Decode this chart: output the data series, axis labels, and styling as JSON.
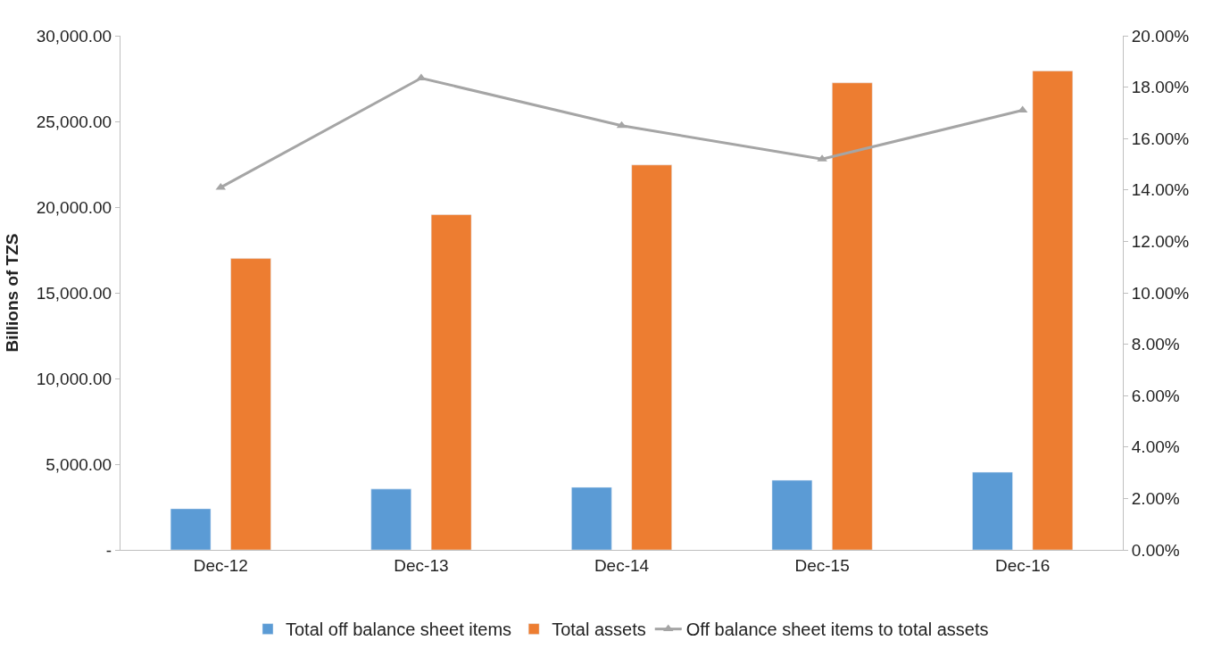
{
  "chart_data": {
    "type": "bar",
    "ylabel": "Billions of TZS",
    "categories": [
      "Dec-12",
      "Dec-13",
      "Dec-14",
      "Dec-15",
      "Dec-16"
    ],
    "series": [
      {
        "name": "Total off balance sheet items",
        "color": "#5b9bd5",
        "values": [
          2400,
          3550,
          3650,
          4060,
          4530
        ]
      },
      {
        "name": "Total assets",
        "color": "#ed7d31",
        "values": [
          17000,
          19560,
          22460,
          27250,
          27940
        ]
      },
      {
        "name": "Off balance sheet items to total assets",
        "type": "line",
        "axis": "y2",
        "color": "#a5a5a5",
        "marker": "triangle",
        "values": [
          14.1,
          18.35,
          16.5,
          15.2,
          17.1
        ]
      }
    ],
    "ylim": [
      0,
      30000
    ],
    "yticks": [
      {
        "value": 0,
        "label": "-"
      },
      {
        "value": 5000,
        "label": "5,000.00"
      },
      {
        "value": 10000,
        "label": "10,000.00"
      },
      {
        "value": 15000,
        "label": "15,000.00"
      },
      {
        "value": 20000,
        "label": "20,000.00"
      },
      {
        "value": 25000,
        "label": "25,000.00"
      },
      {
        "value": 30000,
        "label": "30,000.00"
      }
    ],
    "y2lim": [
      0,
      20
    ],
    "y2ticks": [
      {
        "value": 0,
        "label": "0.00%"
      },
      {
        "value": 2,
        "label": "2.00%"
      },
      {
        "value": 4,
        "label": "4.00%"
      },
      {
        "value": 6,
        "label": "6.00%"
      },
      {
        "value": 8,
        "label": "8.00%"
      },
      {
        "value": 10,
        "label": "10.00%"
      },
      {
        "value": 12,
        "label": "12.00%"
      },
      {
        "value": 14,
        "label": "14.00%"
      },
      {
        "value": 16,
        "label": "16.00%"
      },
      {
        "value": 18,
        "label": "18.00%"
      },
      {
        "value": 20,
        "label": "20.00%"
      }
    ],
    "grid": false,
    "legend": "bottom"
  }
}
